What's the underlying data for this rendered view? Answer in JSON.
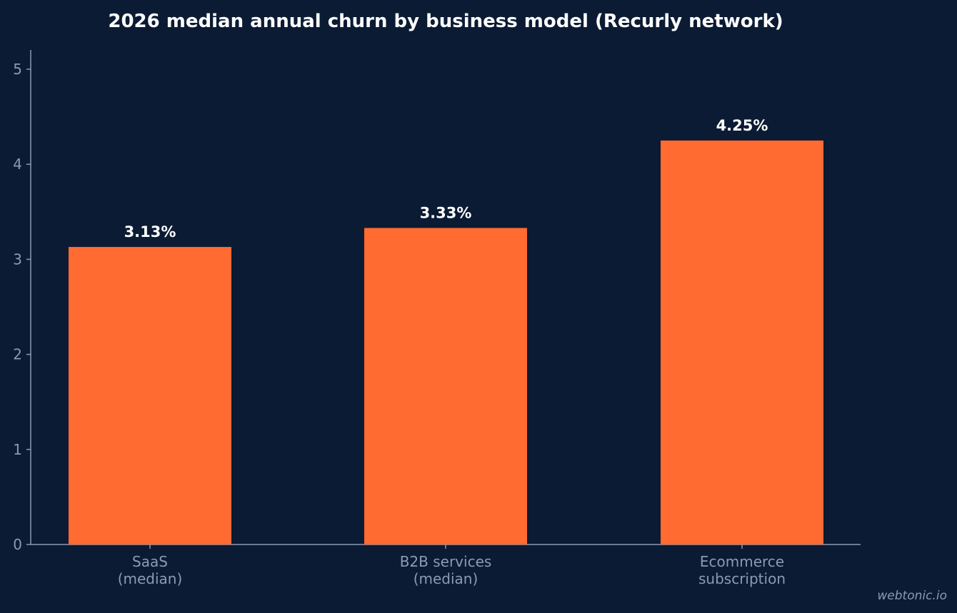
{
  "chart_data": {
    "type": "bar",
    "title": "2026 median annual churn by business model (Recurly network)",
    "categories": [
      [
        "SaaS",
        "(median)"
      ],
      [
        "B2B services",
        "(median)"
      ],
      [
        "Ecommerce",
        "subscription"
      ]
    ],
    "values": [
      3.13,
      3.33,
      4.25
    ],
    "value_labels": [
      "3.13%",
      "3.33%",
      "4.25%"
    ],
    "yticks": [
      0,
      1,
      2,
      3,
      4,
      5
    ],
    "ylim": [
      0,
      5.2
    ],
    "grid": false,
    "bar_color": "#ff6b30",
    "axis_color": "#8b9bb4"
  },
  "watermark": "webtonic.io"
}
